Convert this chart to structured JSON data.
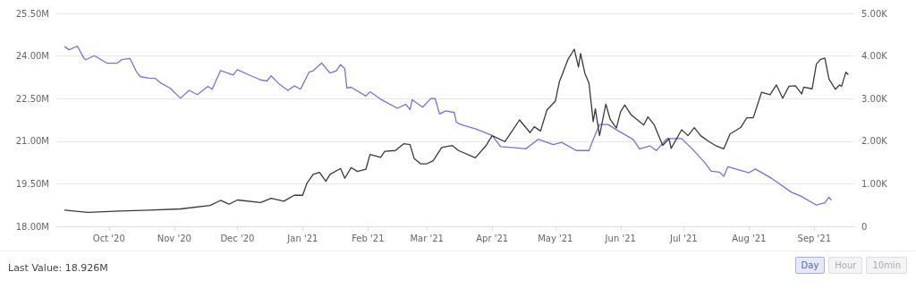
{
  "chart_data": {
    "type": "line",
    "xlim": [
      "2020-09-06",
      "2021-09-20"
    ],
    "xticks": [
      {
        "value": "2020-10-01",
        "label": "Oct '20"
      },
      {
        "value": "2020-11-01",
        "label": "Nov '20"
      },
      {
        "value": "2020-12-01",
        "label": "Dec '20"
      },
      {
        "value": "2021-01-01",
        "label": "Jan '21"
      },
      {
        "value": "2021-02-01",
        "label": "Feb '21"
      },
      {
        "value": "2021-03-01",
        "label": "Mar '21"
      },
      {
        "value": "2021-04-01",
        "label": "Apr '21"
      },
      {
        "value": "2021-05-01",
        "label": "May '21"
      },
      {
        "value": "2021-06-01",
        "label": "Jun '21"
      },
      {
        "value": "2021-07-01",
        "label": "Jul '21"
      },
      {
        "value": "2021-08-01",
        "label": "Aug '21"
      },
      {
        "value": "2021-09-01",
        "label": "Sep '21"
      }
    ],
    "ylim": [
      18,
      25.5
    ],
    "yticks": [
      {
        "value": 18,
        "label": "18.00M"
      },
      {
        "value": 19.5,
        "label": "19.50M"
      },
      {
        "value": 21,
        "label": "21.00M"
      },
      {
        "value": 22.5,
        "label": "22.50M"
      },
      {
        "value": 24,
        "label": "24.00M"
      },
      {
        "value": 25.5,
        "label": "25.50M"
      }
    ],
    "y2lim": [
      0,
      5
    ],
    "y2ticks": [
      0,
      {
        "value": 1,
        "label": "1.00K"
      },
      {
        "value": 2,
        "label": "2.00K"
      },
      {
        "value": 3,
        "label": "3.00K"
      },
      {
        "value": 4,
        "label": "4.00K"
      },
      {
        "value": 5,
        "label": "5.00K"
      }
    ],
    "grid": "y",
    "marker": "none",
    "line_style": "solid",
    "annotations": [
      "Last Value: 18.926M",
      "Day",
      "Hour",
      "10min"
    ],
    "series": [
      {
        "color": "#7b6fe0",
        "x": [
          "2020-09-10",
          "2020-09-12",
          "2020-09-16",
          "2020-09-19",
          "2020-09-20",
          "2020-09-24",
          "2020-09-30",
          "2020-10-05",
          "2020-10-07",
          "2020-10-11",
          "2020-10-14",
          "2020-10-16",
          "2020-10-20",
          "2020-10-23",
          "2020-10-26",
          "2020-10-30",
          "2020-11-04",
          "2020-11-08",
          "2020-11-12",
          "2020-11-17",
          "2020-11-19",
          "2020-11-23",
          "2020-11-29",
          "2020-12-01",
          "2020-12-06",
          "2020-12-12",
          "2020-12-15",
          "2020-12-17",
          "2020-12-21",
          "2020-12-25",
          "2020-12-28",
          "2020-12-31",
          "2021-01-04",
          "2021-01-06",
          "2021-01-10",
          "2021-01-14",
          "2021-01-17",
          "2021-01-19",
          "2021-01-21",
          "2021-01-22",
          "2021-01-24",
          "2021-01-31",
          "2021-02-02",
          "2021-02-07",
          "2021-02-15",
          "2021-02-19",
          "2021-02-21",
          "2021-02-22",
          "2021-02-27",
          "2021-03-03",
          "2021-03-05",
          "2021-03-07",
          "2021-03-10",
          "2021-03-14",
          "2021-03-15",
          "2021-03-17",
          "2021-03-24",
          "2021-04-01",
          "2021-04-05",
          "2021-04-13",
          "2021-04-17",
          "2021-04-23",
          "2021-04-30",
          "2021-05-04",
          "2021-05-11",
          "2021-05-17",
          "2021-05-19",
          "2021-05-22",
          "2021-05-26",
          "2021-05-31",
          "2021-06-07",
          "2021-06-10",
          "2021-06-15",
          "2021-06-18",
          "2021-06-23",
          "2021-06-30",
          "2021-07-05",
          "2021-07-11",
          "2021-07-14",
          "2021-07-18",
          "2021-07-20",
          "2021-07-22",
          "2021-08-01",
          "2021-08-04",
          "2021-08-12",
          "2021-08-21",
          "2021-08-26",
          "2021-09-02",
          "2021-09-06",
          "2021-09-08",
          "2021-09-09"
        ],
        "values": [
          24.33,
          24.22,
          24.35,
          23.93,
          23.87,
          24.01,
          23.75,
          23.75,
          23.87,
          23.91,
          23.45,
          23.27,
          23.22,
          23.21,
          23.03,
          22.87,
          22.51,
          22.79,
          22.64,
          22.93,
          22.83,
          23.49,
          23.33,
          23.52,
          23.35,
          23.16,
          23.12,
          23.3,
          23.0,
          22.79,
          22.95,
          22.83,
          23.43,
          23.48,
          23.75,
          23.4,
          23.48,
          23.7,
          23.55,
          22.87,
          22.9,
          22.59,
          22.74,
          22.48,
          22.16,
          22.3,
          22.11,
          22.46,
          22.2,
          22.51,
          22.49,
          21.96,
          22.07,
          22.01,
          21.67,
          21.59,
          21.44,
          21.2,
          20.81,
          20.76,
          20.73,
          21.07,
          20.88,
          20.96,
          20.67,
          20.67,
          21.06,
          21.59,
          21.59,
          21.36,
          21.06,
          20.73,
          20.83,
          20.67,
          21.09,
          21.09,
          20.73,
          20.25,
          19.94,
          19.91,
          19.76,
          20.1,
          19.89,
          20.02,
          19.68,
          19.21,
          19.05,
          18.75,
          18.83,
          19.03,
          18.93
        ]
      },
      {
        "color": "#3a3a3a",
        "axis": "y2",
        "x": [
          "2020-09-10",
          "2020-09-21",
          "2020-10-06",
          "2020-10-20",
          "2020-11-04",
          "2020-11-18",
          "2020-11-23",
          "2020-11-27",
          "2020-12-01",
          "2020-12-12",
          "2020-12-17",
          "2020-12-23",
          "2020-12-28",
          "2021-01-01",
          "2021-01-03",
          "2021-01-06",
          "2021-01-09",
          "2021-01-12",
          "2021-01-14",
          "2021-01-19",
          "2021-01-21",
          "2021-01-24",
          "2021-01-27",
          "2021-01-31",
          "2021-02-02",
          "2021-02-07",
          "2021-02-09",
          "2021-02-14",
          "2021-02-18",
          "2021-02-21",
          "2021-02-23",
          "2021-02-26",
          "2021-03-01",
          "2021-03-04",
          "2021-03-08",
          "2021-03-13",
          "2021-03-16",
          "2021-03-24",
          "2021-03-29",
          "2021-04-01",
          "2021-04-07",
          "2021-04-09",
          "2021-04-14",
          "2021-04-19",
          "2021-04-21",
          "2021-04-24",
          "2021-04-27",
          "2021-05-01",
          "2021-05-03",
          "2021-05-04",
          "2021-05-07",
          "2021-05-10",
          "2021-05-12",
          "2021-05-13",
          "2021-05-15",
          "2021-05-17",
          "2021-05-19",
          "2021-05-20",
          "2021-05-22",
          "2021-05-25",
          "2021-05-27",
          "2021-05-30",
          "2021-06-01",
          "2021-06-03",
          "2021-06-06",
          "2021-06-12",
          "2021-06-14",
          "2021-06-17",
          "2021-06-21",
          "2021-06-24",
          "2021-06-25",
          "2021-06-30",
          "2021-07-03",
          "2021-07-06",
          "2021-07-09",
          "2021-07-13",
          "2021-07-16",
          "2021-07-20",
          "2021-07-23",
          "2021-07-28",
          "2021-07-31",
          "2021-08-03",
          "2021-08-07",
          "2021-08-11",
          "2021-08-14",
          "2021-08-17",
          "2021-08-20",
          "2021-08-23",
          "2021-08-26",
          "2021-08-27",
          "2021-08-31",
          "2021-09-02",
          "2021-09-04",
          "2021-09-06",
          "2021-09-08",
          "2021-09-11",
          "2021-09-13",
          "2021-09-14",
          "2021-09-16",
          "2021-09-17"
        ],
        "values": [
          0.38,
          0.33,
          0.36,
          0.38,
          0.41,
          0.49,
          0.61,
          0.52,
          0.62,
          0.56,
          0.66,
          0.59,
          0.73,
          0.73,
          1.01,
          1.22,
          1.27,
          1.06,
          1.22,
          1.36,
          1.13,
          1.38,
          1.29,
          1.34,
          1.69,
          1.62,
          1.76,
          1.78,
          1.94,
          1.92,
          1.59,
          1.47,
          1.47,
          1.54,
          1.85,
          1.9,
          1.78,
          1.61,
          1.89,
          2.13,
          1.99,
          2.13,
          2.5,
          2.2,
          2.34,
          2.24,
          2.73,
          2.94,
          3.41,
          3.53,
          3.92,
          4.16,
          3.74,
          4.06,
          3.6,
          3.36,
          2.46,
          2.76,
          2.13,
          2.87,
          2.52,
          2.31,
          2.69,
          2.85,
          2.62,
          2.38,
          2.57,
          2.38,
          1.9,
          2.06,
          1.83,
          2.27,
          2.13,
          2.32,
          2.13,
          1.99,
          1.9,
          1.82,
          2.17,
          2.32,
          2.55,
          2.55,
          3.15,
          3.09,
          3.32,
          3.01,
          3.29,
          3.3,
          3.11,
          3.27,
          3.23,
          3.81,
          3.92,
          3.95,
          3.46,
          3.22,
          3.32,
          3.29,
          3.62,
          3.57
        ]
      }
    ]
  }
}
